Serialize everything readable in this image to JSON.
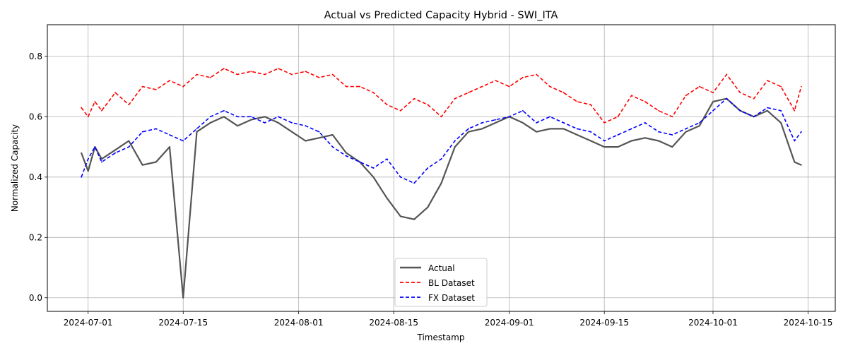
{
  "chart_data": {
    "type": "line",
    "title": "Actual vs Predicted Capacity Hybrid - SWI_ITA",
    "xlabel": "Timestamp",
    "ylabel": "Normalized Capacity",
    "x_range": [
      "2024-06-25",
      "2024-10-19"
    ],
    "ylim": [
      -0.045,
      0.905
    ],
    "x_ticks": [
      "2024-07-01",
      "2024-07-15",
      "2024-08-01",
      "2024-08-15",
      "2024-09-01",
      "2024-09-15",
      "2024-10-01",
      "2024-10-15"
    ],
    "y_ticks": [
      0.0,
      0.2,
      0.4,
      0.6,
      0.8
    ],
    "y_tick_labels": [
      "0.0",
      "0.2",
      "0.4",
      "0.6",
      "0.8"
    ],
    "grid": true,
    "legend_position": "bottom-center",
    "series": [
      {
        "name": "Actual",
        "color": "#555555",
        "style": "solid",
        "x": [
          "2024-06-30",
          "2024-07-01",
          "2024-07-02",
          "2024-07-03",
          "2024-07-05",
          "2024-07-07",
          "2024-07-09",
          "2024-07-11",
          "2024-07-13",
          "2024-07-15",
          "2024-07-17",
          "2024-07-19",
          "2024-07-21",
          "2024-07-23",
          "2024-07-25",
          "2024-07-27",
          "2024-07-29",
          "2024-07-31",
          "2024-08-02",
          "2024-08-04",
          "2024-08-06",
          "2024-08-08",
          "2024-08-10",
          "2024-08-12",
          "2024-08-14",
          "2024-08-16",
          "2024-08-18",
          "2024-08-20",
          "2024-08-22",
          "2024-08-24",
          "2024-08-26",
          "2024-08-28",
          "2024-08-30",
          "2024-09-01",
          "2024-09-03",
          "2024-09-05",
          "2024-09-07",
          "2024-09-09",
          "2024-09-11",
          "2024-09-13",
          "2024-09-15",
          "2024-09-17",
          "2024-09-19",
          "2024-09-21",
          "2024-09-23",
          "2024-09-25",
          "2024-09-27",
          "2024-09-29",
          "2024-10-01",
          "2024-10-03",
          "2024-10-05",
          "2024-10-07",
          "2024-10-09",
          "2024-10-11",
          "2024-10-13",
          "2024-10-14"
        ],
        "values": [
          0.48,
          0.42,
          0.5,
          0.46,
          0.49,
          0.52,
          0.44,
          0.45,
          0.5,
          0.0,
          0.55,
          0.58,
          0.6,
          0.57,
          0.59,
          0.6,
          0.58,
          0.55,
          0.52,
          0.53,
          0.54,
          0.48,
          0.45,
          0.4,
          0.33,
          0.27,
          0.26,
          0.3,
          0.38,
          0.5,
          0.55,
          0.56,
          0.58,
          0.6,
          0.58,
          0.55,
          0.56,
          0.56,
          0.54,
          0.52,
          0.5,
          0.5,
          0.52,
          0.53,
          0.52,
          0.5,
          0.55,
          0.57,
          0.65,
          0.66,
          0.62,
          0.6,
          0.62,
          0.58,
          0.45,
          0.44
        ]
      },
      {
        "name": "BL Dataset",
        "color": "#ff0000",
        "style": "dashed",
        "x": [
          "2024-06-30",
          "2024-07-01",
          "2024-07-02",
          "2024-07-03",
          "2024-07-05",
          "2024-07-07",
          "2024-07-09",
          "2024-07-11",
          "2024-07-13",
          "2024-07-15",
          "2024-07-17",
          "2024-07-19",
          "2024-07-21",
          "2024-07-23",
          "2024-07-25",
          "2024-07-27",
          "2024-07-29",
          "2024-07-31",
          "2024-08-02",
          "2024-08-04",
          "2024-08-06",
          "2024-08-08",
          "2024-08-10",
          "2024-08-12",
          "2024-08-14",
          "2024-08-16",
          "2024-08-18",
          "2024-08-20",
          "2024-08-22",
          "2024-08-24",
          "2024-08-26",
          "2024-08-28",
          "2024-08-30",
          "2024-09-01",
          "2024-09-03",
          "2024-09-05",
          "2024-09-07",
          "2024-09-09",
          "2024-09-11",
          "2024-09-13",
          "2024-09-15",
          "2024-09-17",
          "2024-09-19",
          "2024-09-21",
          "2024-09-23",
          "2024-09-25",
          "2024-09-27",
          "2024-09-29",
          "2024-10-01",
          "2024-10-03",
          "2024-10-05",
          "2024-10-07",
          "2024-10-09",
          "2024-10-11",
          "2024-10-13",
          "2024-10-14"
        ],
        "values": [
          0.63,
          0.6,
          0.65,
          0.62,
          0.68,
          0.64,
          0.7,
          0.69,
          0.72,
          0.7,
          0.74,
          0.73,
          0.76,
          0.74,
          0.75,
          0.74,
          0.76,
          0.74,
          0.75,
          0.73,
          0.74,
          0.7,
          0.7,
          0.68,
          0.64,
          0.62,
          0.66,
          0.64,
          0.6,
          0.66,
          0.68,
          0.7,
          0.72,
          0.7,
          0.73,
          0.74,
          0.7,
          0.68,
          0.65,
          0.64,
          0.58,
          0.6,
          0.67,
          0.65,
          0.62,
          0.6,
          0.67,
          0.7,
          0.68,
          0.74,
          0.68,
          0.66,
          0.72,
          0.7,
          0.62,
          0.7
        ]
      },
      {
        "name": "FX Dataset",
        "color": "#0000ff",
        "style": "dashed",
        "x": [
          "2024-06-30",
          "2024-07-01",
          "2024-07-02",
          "2024-07-03",
          "2024-07-05",
          "2024-07-07",
          "2024-07-09",
          "2024-07-11",
          "2024-07-13",
          "2024-07-15",
          "2024-07-17",
          "2024-07-19",
          "2024-07-21",
          "2024-07-23",
          "2024-07-25",
          "2024-07-27",
          "2024-07-29",
          "2024-07-31",
          "2024-08-02",
          "2024-08-04",
          "2024-08-06",
          "2024-08-08",
          "2024-08-10",
          "2024-08-12",
          "2024-08-14",
          "2024-08-16",
          "2024-08-18",
          "2024-08-20",
          "2024-08-22",
          "2024-08-24",
          "2024-08-26",
          "2024-08-28",
          "2024-08-30",
          "2024-09-01",
          "2024-09-03",
          "2024-09-05",
          "2024-09-07",
          "2024-09-09",
          "2024-09-11",
          "2024-09-13",
          "2024-09-15",
          "2024-09-17",
          "2024-09-19",
          "2024-09-21",
          "2024-09-23",
          "2024-09-25",
          "2024-09-27",
          "2024-09-29",
          "2024-10-01",
          "2024-10-03",
          "2024-10-05",
          "2024-10-07",
          "2024-10-09",
          "2024-10-11",
          "2024-10-13",
          "2024-10-14"
        ],
        "values": [
          0.4,
          0.46,
          0.5,
          0.45,
          0.48,
          0.5,
          0.55,
          0.56,
          0.54,
          0.52,
          0.56,
          0.6,
          0.62,
          0.6,
          0.6,
          0.58,
          0.6,
          0.58,
          0.57,
          0.55,
          0.5,
          0.47,
          0.45,
          0.43,
          0.46,
          0.4,
          0.38,
          0.43,
          0.46,
          0.52,
          0.56,
          0.58,
          0.59,
          0.6,
          0.62,
          0.58,
          0.6,
          0.58,
          0.56,
          0.55,
          0.52,
          0.54,
          0.56,
          0.58,
          0.55,
          0.54,
          0.56,
          0.58,
          0.62,
          0.66,
          0.62,
          0.6,
          0.63,
          0.62,
          0.52,
          0.55
        ]
      }
    ]
  }
}
